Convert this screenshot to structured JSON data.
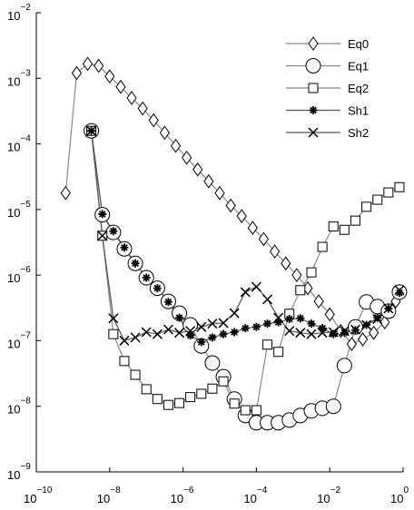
{
  "chart_data": {
    "type": "line",
    "xscale": "log",
    "yscale": "log",
    "legend": "upper right",
    "xlim": [
      1e-10,
      1
    ],
    "ylim": [
      1e-09,
      0.01
    ],
    "xticks": [
      {
        "value": 1e-10,
        "label": "10",
        "exponent": "−10"
      },
      {
        "value": 1e-08,
        "label": "10",
        "exponent": "−8"
      },
      {
        "value": 1e-06,
        "label": "10",
        "exponent": "−6"
      },
      {
        "value": 0.0001,
        "label": "10",
        "exponent": "−4"
      },
      {
        "value": 0.01,
        "label": "10",
        "exponent": "−2"
      },
      {
        "value": 1,
        "label": "10",
        "exponent": "0"
      }
    ],
    "yticks": [
      {
        "value": 0.01,
        "label": "10",
        "exponent": "−2"
      },
      {
        "value": 0.001,
        "label": "10",
        "exponent": "−3"
      },
      {
        "value": 0.0001,
        "label": "10",
        "exponent": "−4"
      },
      {
        "value": 1e-05,
        "label": "10",
        "exponent": "−5"
      },
      {
        "value": 1e-06,
        "label": "10",
        "exponent": "−6"
      },
      {
        "value": 1e-07,
        "label": "10",
        "exponent": "−7"
      },
      {
        "value": 1e-08,
        "label": "10",
        "exponent": "−8"
      },
      {
        "value": 1e-09,
        "label": "10",
        "exponent": "−9"
      }
    ],
    "x": [
      3.16e-09,
      6.31e-09,
      1.26e-08,
      2.51e-08,
      5.01e-08,
      1e-07,
      2e-07,
      3.98e-07,
      7.94e-07,
      1.58e-06,
      3.16e-06,
      6.31e-06,
      1.26e-05,
      2.51e-05,
      5.01e-05,
      0.0001,
      0.0002,
      0.000398,
      0.000794,
      0.00158,
      0.00316,
      0.00631,
      0.0126,
      0.0251,
      0.0501,
      0.1,
      0.2,
      0.398,
      0.794
    ],
    "series": [
      {
        "name": "Eq0",
        "marker": "diamond",
        "color": "#888888",
        "x": [
          6.31e-10,
          1.26e-09,
          2.51e-09,
          5.01e-09,
          1e-08,
          2e-08,
          3.98e-08,
          7.94e-08,
          1.58e-07,
          3.16e-07,
          6.31e-07,
          1.26e-06,
          2.51e-06,
          5.01e-06,
          1e-05,
          2e-05,
          3.98e-05,
          7.94e-05,
          0.000158,
          0.000316,
          0.000631,
          0.00126,
          0.00251,
          0.00501,
          0.01,
          0.02,
          0.0398,
          0.0794,
          0.158,
          0.316,
          0.631
        ],
        "values": [
          1.78e-05,
          0.0012,
          0.00166,
          0.00155,
          0.00107,
          0.000741,
          0.000501,
          0.000347,
          0.000229,
          0.000148,
          9.33e-05,
          6.17e-05,
          4.07e-05,
          2.69e-05,
          1.78e-05,
          1.15e-05,
          7.94e-06,
          5.25e-06,
          3.55e-06,
          2.29e-06,
          1.51e-06,
          1e-06,
          6.31e-07,
          3.98e-07,
          2.51e-07,
          1.41e-07,
          8.91e-08,
          1.05e-07,
          1.32e-07,
          1.91e-07,
          3.98e-07
        ]
      },
      {
        "name": "Eq1",
        "marker": "circle",
        "color": "#888888",
        "values": [
          0.000158,
          8.32e-06,
          4.47e-06,
          2.51e-06,
          1.51e-06,
          9.12e-07,
          6.31e-07,
          3.98e-07,
          2.63e-07,
          1.74e-07,
          8.32e-08,
          4.57e-08,
          2.82e-08,
          1.29e-08,
          7.24e-09,
          5.62e-09,
          5.62e-09,
          5.62e-09,
          6.17e-09,
          7.24e-09,
          8.51e-09,
          9.33e-09,
          1e-08,
          4.17e-08,
          1.62e-07,
          3.89e-07,
          3.31e-07,
          2.82e-07,
          5.5e-07
        ]
      },
      {
        "name": "Eq2",
        "marker": "square",
        "color": "#888888",
        "values": [
          0.000158,
          3.98e-06,
          1.26e-07,
          4.9e-08,
          3.02e-08,
          1.82e-08,
          1.29e-08,
          1.05e-08,
          1.12e-08,
          1.38e-08,
          1.55e-08,
          1.86e-08,
          2.4e-08,
          1.1e-08,
          8.71e-09,
          8.71e-09,
          8.71e-08,
          6.76e-08,
          2.57e-07,
          5.89e-07,
          1.1e-06,
          2.69e-06,
          5.5e-06,
          4.9e-06,
          6.76e-06,
          1.1e-05,
          1.41e-05,
          1.82e-05,
          2.19e-05
        ]
      },
      {
        "name": "Sh1",
        "marker": "star",
        "color": "#555555",
        "values": [
          0.000158,
          8.51e-06,
          4.68e-06,
          2.63e-06,
          1.51e-06,
          9.12e-07,
          6.31e-07,
          3.89e-07,
          2.24e-07,
          1.2e-07,
          9.55e-08,
          1.12e-07,
          1.26e-07,
          1.35e-07,
          1.55e-07,
          1.62e-07,
          1.82e-07,
          1.91e-07,
          2.14e-07,
          2.19e-07,
          1.82e-07,
          1.55e-07,
          1.26e-07,
          1.32e-07,
          1.45e-07,
          1.74e-07,
          2.24e-07,
          3.09e-07,
          5.37e-07
        ]
      },
      {
        "name": "Sh2",
        "marker": "x",
        "color": "#555555",
        "values": [
          0.000158,
          3.98e-06,
          2.19e-07,
          1e-07,
          1.12e-07,
          1.35e-07,
          1.26e-07,
          1.48e-07,
          1.32e-07,
          1.41e-07,
          1.62e-07,
          1.82e-07,
          1.86e-07,
          2.63e-07,
          5.5e-07,
          6.61e-07,
          4.27e-07,
          2.24e-07,
          1.41e-07,
          1.32e-07,
          1.26e-07,
          1.32e-07,
          1.35e-07,
          1.41e-07,
          1.48e-07,
          1.74e-07,
          2.14e-07,
          3.09e-07,
          5.89e-07
        ]
      }
    ]
  }
}
